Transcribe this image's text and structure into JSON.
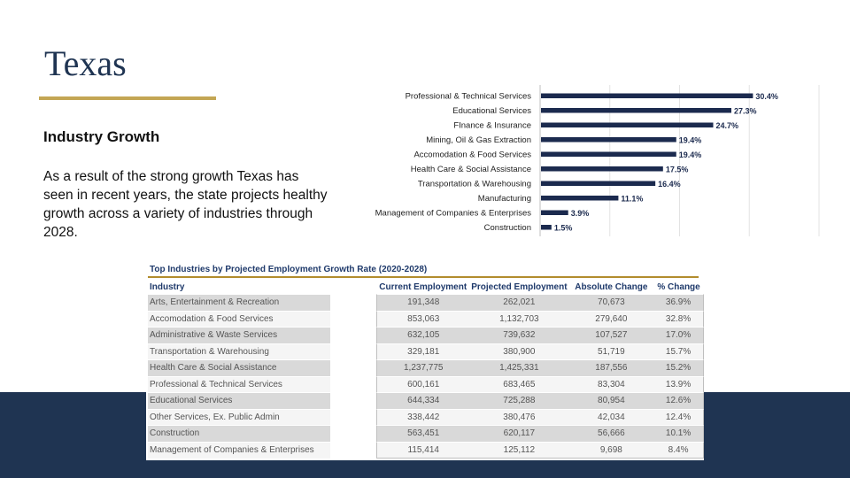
{
  "slide": {
    "title": "Texas",
    "subheading": "Industry Growth",
    "body": "As a result of the strong growth Texas has seen in recent years, the state projects healthy growth across a variety of industries through 2028."
  },
  "chart_data": {
    "type": "bar",
    "orientation": "horizontal",
    "categories": [
      "Professional & Technical Services",
      "Educational Services",
      "FInance & Insurance",
      "Mining, Oil & Gas Extraction",
      "Accomodation & Food Services",
      "Health Care & Social Assistance",
      "Transportation & Warehousing",
      "Manufacturing",
      "Management of Companies & Enterprises",
      "Construction"
    ],
    "values": [
      30.4,
      27.3,
      24.7,
      19.4,
      19.4,
      17.5,
      16.4,
      11.1,
      3.9,
      1.5
    ],
    "value_labels": [
      "30.4%",
      "27.3%",
      "24.7%",
      "19.4%",
      "19.4%",
      "17.5%",
      "16.4%",
      "11.1%",
      "3.9%",
      "1.5%"
    ],
    "xlim": [
      0,
      40
    ],
    "grid": true,
    "bar_color": "#1b2a4e",
    "title": "",
    "xlabel": "",
    "ylabel": ""
  },
  "table": {
    "title": "Top Industries by Projected Employment Growth Rate (2020-2028)",
    "headers": [
      "Industry",
      "Current Employment",
      "Projected Employment",
      "Absolute Change",
      "% Change"
    ],
    "rows": [
      [
        "Arts, Entertainment & Recreation",
        "191,348",
        "262,021",
        "70,673",
        "36.9%"
      ],
      [
        "Accomodation & Food Services",
        "853,063",
        "1,132,703",
        "279,640",
        "32.8%"
      ],
      [
        "Administrative & Waste Services",
        "632,105",
        "739,632",
        "107,527",
        "17.0%"
      ],
      [
        "Transportation & Warehousing",
        "329,181",
        "380,900",
        "51,719",
        "15.7%"
      ],
      [
        "Health Care & Social Assistance",
        "1,237,775",
        "1,425,331",
        "187,556",
        "15.2%"
      ],
      [
        "Professional & Technical Services",
        "600,161",
        "683,465",
        "83,304",
        "13.9%"
      ],
      [
        "Educational Services",
        "644,334",
        "725,288",
        "80,954",
        "12.6%"
      ],
      [
        "Other Services, Ex. Public Admin",
        "338,442",
        "380,476",
        "42,034",
        "12.4%"
      ],
      [
        "Construction",
        "563,451",
        "620,117",
        "56,666",
        "10.1%"
      ],
      [
        "Management of Companies & Enterprises",
        "115,414",
        "125,112",
        "9,698",
        "8.4%"
      ]
    ]
  },
  "colors": {
    "navy": "#1f3452",
    "gold": "#c3a654"
  }
}
